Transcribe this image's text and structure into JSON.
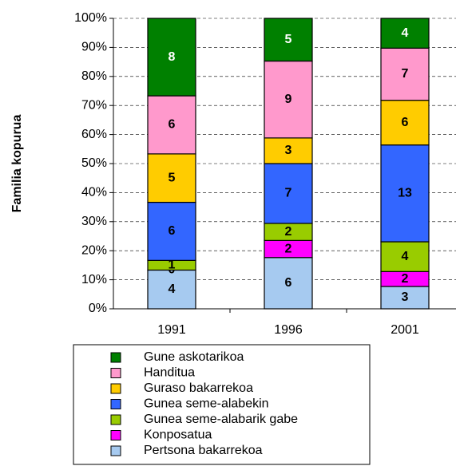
{
  "chart_data": {
    "type": "bar",
    "stacking": "percent",
    "y_label": "Familia kopurua",
    "categories": [
      "1991",
      "1996",
      "2001"
    ],
    "series": [
      {
        "name": "Pertsona bakarrekoa",
        "color": "#a6caf0",
        "values": [
          4,
          6,
          3
        ]
      },
      {
        "name": "Konposatua",
        "color": "#ff00ff",
        "values": [
          0,
          2,
          2
        ]
      },
      {
        "name": "Gunea seme-alabarik gabe",
        "color": "#99cc00",
        "values": [
          1,
          2,
          4
        ]
      },
      {
        "name": "Gunea seme-alabekin",
        "color": "#3366ff",
        "values": [
          6,
          7,
          13
        ]
      },
      {
        "name": "Guraso bakarrekoa",
        "color": "#ffcc00",
        "values": [
          5,
          3,
          6
        ]
      },
      {
        "name": "Handitua",
        "color": "#ff99cc",
        "values": [
          6,
          9,
          7
        ]
      },
      {
        "name": "Gune askotarikoa",
        "color": "#008000",
        "values": [
          8,
          5,
          4
        ]
      }
    ],
    "ylim": [
      0,
      100
    ],
    "yticks": [
      {
        "value": 0,
        "label": "0%"
      },
      {
        "value": 10,
        "label": "10%"
      },
      {
        "value": 20,
        "label": "20%"
      },
      {
        "value": 30,
        "label": "30%"
      },
      {
        "value": 40,
        "label": "40%"
      },
      {
        "value": 50,
        "label": "50%"
      },
      {
        "value": 60,
        "label": "60%"
      },
      {
        "value": 70,
        "label": "70%"
      },
      {
        "value": 80,
        "label": "80%"
      },
      {
        "value": 90,
        "label": "90%"
      },
      {
        "value": 100,
        "label": "100%"
      }
    ],
    "grid": true,
    "legend": "bottom"
  }
}
